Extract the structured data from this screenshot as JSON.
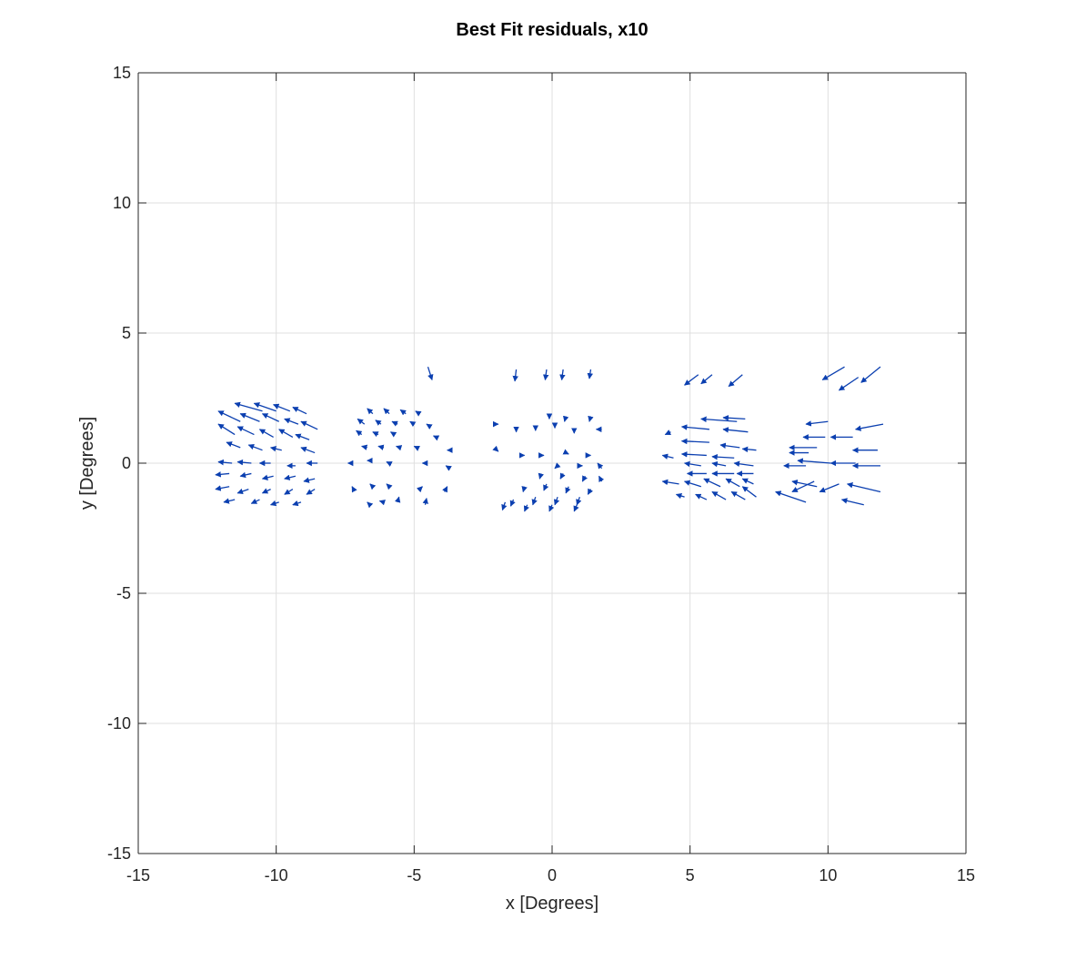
{
  "chart_data": {
    "type": "quiver",
    "title": "Best Fit residuals, x10",
    "xlabel": "x [Degrees]",
    "ylabel": "y [Degrees]",
    "xlim": [
      -15,
      15
    ],
    "ylim": [
      -15,
      15
    ],
    "xticks": [
      -15,
      -10,
      -5,
      0,
      5,
      10,
      15
    ],
    "yticks": [
      -15,
      -10,
      -5,
      0,
      5,
      10,
      15
    ],
    "xtick_labels": [
      "-15",
      "-10",
      "-5",
      "0",
      "5",
      "10",
      "15"
    ],
    "ytick_labels": [
      "-15",
      "-10",
      "-5",
      "0",
      "5",
      "10",
      "15"
    ],
    "grid": true,
    "box": true,
    "series_color": "#0b3fb0",
    "vectors": [
      {
        "x": -10.5,
        "y": 2.0,
        "u": -1.0,
        "v": 0.3
      },
      {
        "x": -10.0,
        "y": 2.0,
        "u": -0.8,
        "v": 0.3
      },
      {
        "x": -9.5,
        "y": 2.0,
        "u": -0.6,
        "v": 0.25
      },
      {
        "x": -8.9,
        "y": 1.9,
        "u": -0.5,
        "v": 0.25
      },
      {
        "x": -11.3,
        "y": 1.6,
        "u": -0.8,
        "v": 0.4
      },
      {
        "x": -10.6,
        "y": 1.6,
        "u": -0.7,
        "v": 0.3
      },
      {
        "x": -9.9,
        "y": 1.6,
        "u": -0.6,
        "v": 0.3
      },
      {
        "x": -9.2,
        "y": 1.5,
        "u": -0.5,
        "v": 0.2
      },
      {
        "x": -8.5,
        "y": 1.3,
        "u": -0.6,
        "v": 0.3
      },
      {
        "x": -11.5,
        "y": 1.1,
        "u": -0.6,
        "v": 0.4
      },
      {
        "x": -10.8,
        "y": 1.1,
        "u": -0.6,
        "v": 0.3
      },
      {
        "x": -10.1,
        "y": 1.0,
        "u": -0.5,
        "v": 0.3
      },
      {
        "x": -9.4,
        "y": 1.0,
        "u": -0.5,
        "v": 0.3
      },
      {
        "x": -8.8,
        "y": 0.9,
        "u": -0.5,
        "v": 0.2
      },
      {
        "x": -11.3,
        "y": 0.6,
        "u": -0.5,
        "v": 0.2
      },
      {
        "x": -10.5,
        "y": 0.5,
        "u": -0.5,
        "v": 0.2
      },
      {
        "x": -9.8,
        "y": 0.5,
        "u": -0.4,
        "v": 0.1
      },
      {
        "x": -8.6,
        "y": 0.4,
        "u": -0.5,
        "v": 0.2
      },
      {
        "x": -11.6,
        "y": 0.0,
        "u": -0.5,
        "v": 0.05
      },
      {
        "x": -10.9,
        "y": 0.0,
        "u": -0.5,
        "v": 0.05
      },
      {
        "x": -10.2,
        "y": 0.0,
        "u": -0.4,
        "v": 0.0
      },
      {
        "x": -9.3,
        "y": -0.1,
        "u": -0.3,
        "v": 0.0
      },
      {
        "x": -8.5,
        "y": 0.0,
        "u": -0.4,
        "v": 0.0
      },
      {
        "x": -11.7,
        "y": -0.4,
        "u": -0.5,
        "v": -0.05
      },
      {
        "x": -10.9,
        "y": -0.4,
        "u": -0.4,
        "v": -0.1
      },
      {
        "x": -10.1,
        "y": -0.5,
        "u": -0.4,
        "v": -0.1
      },
      {
        "x": -9.3,
        "y": -0.5,
        "u": -0.4,
        "v": -0.1
      },
      {
        "x": -8.6,
        "y": -0.6,
        "u": -0.4,
        "v": -0.1
      },
      {
        "x": -11.7,
        "y": -0.9,
        "u": -0.5,
        "v": -0.1
      },
      {
        "x": -11.0,
        "y": -1.0,
        "u": -0.4,
        "v": -0.15
      },
      {
        "x": -10.2,
        "y": -1.0,
        "u": -0.3,
        "v": -0.15
      },
      {
        "x": -9.4,
        "y": -1.0,
        "u": -0.3,
        "v": -0.2
      },
      {
        "x": -8.6,
        "y": -1.0,
        "u": -0.3,
        "v": -0.2
      },
      {
        "x": -11.5,
        "y": -1.4,
        "u": -0.4,
        "v": -0.1
      },
      {
        "x": -10.6,
        "y": -1.4,
        "u": -0.3,
        "v": -0.15
      },
      {
        "x": -9.9,
        "y": -1.5,
        "u": -0.3,
        "v": -0.1
      },
      {
        "x": -9.1,
        "y": -1.5,
        "u": -0.3,
        "v": -0.1
      },
      {
        "x": -6.5,
        "y": 1.9,
        "u": -0.2,
        "v": 0.2
      },
      {
        "x": -5.9,
        "y": 1.9,
        "u": -0.2,
        "v": 0.2
      },
      {
        "x": -5.3,
        "y": 1.9,
        "u": -0.2,
        "v": 0.15
      },
      {
        "x": -4.8,
        "y": 1.9,
        "u": -0.15,
        "v": 0.1
      },
      {
        "x": -6.8,
        "y": 1.5,
        "u": -0.25,
        "v": 0.2
      },
      {
        "x": -6.2,
        "y": 1.5,
        "u": -0.2,
        "v": 0.15
      },
      {
        "x": -5.6,
        "y": 1.5,
        "u": -0.2,
        "v": 0.1
      },
      {
        "x": -5.0,
        "y": 1.5,
        "u": -0.15,
        "v": 0.1
      },
      {
        "x": -4.4,
        "y": 1.4,
        "u": -0.15,
        "v": 0.1
      },
      {
        "x": -6.9,
        "y": 1.1,
        "u": -0.2,
        "v": 0.15
      },
      {
        "x": -6.3,
        "y": 1.1,
        "u": -0.2,
        "v": 0.1
      },
      {
        "x": -5.7,
        "y": 1.1,
        "u": -0.15,
        "v": 0.1
      },
      {
        "x": -4.2,
        "y": 1.0,
        "u": -0.1,
        "v": 0.05
      },
      {
        "x": -6.7,
        "y": 0.6,
        "u": -0.2,
        "v": 0.05
      },
      {
        "x": -6.1,
        "y": 0.6,
        "u": -0.2,
        "v": 0.05
      },
      {
        "x": -5.5,
        "y": 0.6,
        "u": -0.15,
        "v": 0.05
      },
      {
        "x": -4.9,
        "y": 0.6,
        "u": -0.1,
        "v": 0.05
      },
      {
        "x": -3.7,
        "y": 0.5,
        "u": -0.1,
        "v": 0.0
      },
      {
        "x": -7.3,
        "y": 0.0,
        "u": -0.1,
        "v": 0.0
      },
      {
        "x": -6.6,
        "y": 0.1,
        "u": -0.1,
        "v": 0.0
      },
      {
        "x": -5.9,
        "y": 0.0,
        "u": -0.1,
        "v": 0.05
      },
      {
        "x": -4.6,
        "y": 0.0,
        "u": -0.1,
        "v": 0.0
      },
      {
        "x": -3.7,
        "y": -0.2,
        "u": -0.15,
        "v": 0.1
      },
      {
        "x": -7.2,
        "y": -1.0,
        "u": -0.05,
        "v": 0.1
      },
      {
        "x": -6.5,
        "y": -0.9,
        "u": -0.1,
        "v": 0.1
      },
      {
        "x": -5.9,
        "y": -0.9,
        "u": -0.1,
        "v": 0.1
      },
      {
        "x": -4.8,
        "y": -1.0,
        "u": 0.1,
        "v": 0.1
      },
      {
        "x": -3.9,
        "y": -1.1,
        "u": 0.1,
        "v": 0.2
      },
      {
        "x": -6.6,
        "y": -1.6,
        "u": -0.1,
        "v": 0.1
      },
      {
        "x": -6.1,
        "y": -1.5,
        "u": -0.15,
        "v": 0.05
      },
      {
        "x": -5.6,
        "y": -1.5,
        "u": 0.05,
        "v": 0.2
      },
      {
        "x": -4.6,
        "y": -1.6,
        "u": 0.05,
        "v": 0.25
      },
      {
        "x": -4.5,
        "y": 3.7,
        "u": 0.15,
        "v": -0.5
      },
      {
        "x": -1.3,
        "y": 3.6,
        "u": -0.05,
        "v": -0.45
      },
      {
        "x": -0.2,
        "y": 3.6,
        "u": -0.05,
        "v": -0.4
      },
      {
        "x": 0.4,
        "y": 3.6,
        "u": -0.05,
        "v": -0.4
      },
      {
        "x": 1.4,
        "y": 3.6,
        "u": -0.05,
        "v": -0.35
      },
      {
        "x": -0.1,
        "y": 1.9,
        "u": 0.0,
        "v": -0.2
      },
      {
        "x": 0.5,
        "y": 1.8,
        "u": -0.05,
        "v": -0.2
      },
      {
        "x": 1.4,
        "y": 1.8,
        "u": -0.05,
        "v": -0.2
      },
      {
        "x": -0.6,
        "y": 1.4,
        "u": 0.0,
        "v": -0.15
      },
      {
        "x": 0.1,
        "y": 1.5,
        "u": 0.0,
        "v": -0.15
      },
      {
        "x": 0.8,
        "y": 1.3,
        "u": 0.0,
        "v": -0.15
      },
      {
        "x": 1.8,
        "y": 1.3,
        "u": -0.2,
        "v": 0.0
      },
      {
        "x": -2.0,
        "y": 1.5,
        "u": 0.05,
        "v": 0.0
      },
      {
        "x": -1.3,
        "y": 1.3,
        "u": 0.0,
        "v": -0.1
      },
      {
        "x": -2.0,
        "y": 0.5,
        "u": 0.05,
        "v": -0.05
      },
      {
        "x": -1.1,
        "y": 0.3,
        "u": 0.1,
        "v": 0.0
      },
      {
        "x": -0.4,
        "y": 0.3,
        "u": 0.1,
        "v": 0.0
      },
      {
        "x": 0.5,
        "y": 0.4,
        "u": 0.1,
        "v": -0.05
      },
      {
        "x": 1.3,
        "y": 0.3,
        "u": 0.1,
        "v": 0.0
      },
      {
        "x": 0.2,
        "y": -0.1,
        "u": -0.1,
        "v": -0.1
      },
      {
        "x": 1.0,
        "y": -0.1,
        "u": 0.1,
        "v": 0.0
      },
      {
        "x": 1.8,
        "y": -0.2,
        "u": -0.15,
        "v": 0.2
      },
      {
        "x": -0.4,
        "y": -0.4,
        "u": -0.05,
        "v": -0.2
      },
      {
        "x": 0.4,
        "y": -0.4,
        "u": -0.1,
        "v": -0.2
      },
      {
        "x": 1.2,
        "y": -0.5,
        "u": -0.1,
        "v": -0.2
      },
      {
        "x": 1.8,
        "y": -0.7,
        "u": -0.1,
        "v": 0.2
      },
      {
        "x": -1.0,
        "y": -0.9,
        "u": -0.05,
        "v": -0.2
      },
      {
        "x": -0.2,
        "y": -0.8,
        "u": -0.1,
        "v": -0.25
      },
      {
        "x": 0.6,
        "y": -0.9,
        "u": -0.1,
        "v": -0.25
      },
      {
        "x": 1.4,
        "y": -1.0,
        "u": -0.1,
        "v": -0.2
      },
      {
        "x": -1.4,
        "y": -1.4,
        "u": -0.1,
        "v": -0.25
      },
      {
        "x": -0.6,
        "y": -1.3,
        "u": -0.1,
        "v": -0.3
      },
      {
        "x": 0.2,
        "y": -1.3,
        "u": -0.1,
        "v": -0.3
      },
      {
        "x": 1.0,
        "y": -1.3,
        "u": -0.1,
        "v": -0.3
      },
      {
        "x": -1.7,
        "y": -1.5,
        "u": -0.1,
        "v": -0.3
      },
      {
        "x": -0.9,
        "y": -1.6,
        "u": -0.1,
        "v": -0.25
      },
      {
        "x": 0.0,
        "y": -1.6,
        "u": -0.1,
        "v": -0.25
      },
      {
        "x": 0.9,
        "y": -1.6,
        "u": -0.1,
        "v": -0.25
      },
      {
        "x": 5.3,
        "y": 3.4,
        "u": -0.5,
        "v": -0.4
      },
      {
        "x": 5.8,
        "y": 3.4,
        "u": -0.4,
        "v": -0.35
      },
      {
        "x": 6.9,
        "y": 3.4,
        "u": -0.5,
        "v": -0.45
      },
      {
        "x": 10.6,
        "y": 3.7,
        "u": -0.8,
        "v": -0.5
      },
      {
        "x": 11.1,
        "y": 3.3,
        "u": -0.7,
        "v": -0.5
      },
      {
        "x": 11.9,
        "y": 3.7,
        "u": -0.7,
        "v": -0.6
      },
      {
        "x": 6.7,
        "y": 1.6,
        "u": -1.3,
        "v": 0.1
      },
      {
        "x": 7.0,
        "y": 1.7,
        "u": -0.8,
        "v": 0.05
      },
      {
        "x": 5.7,
        "y": 1.3,
        "u": -1.0,
        "v": 0.1
      },
      {
        "x": 7.1,
        "y": 1.2,
        "u": -0.9,
        "v": 0.1
      },
      {
        "x": 4.3,
        "y": 1.2,
        "u": -0.2,
        "v": -0.1
      },
      {
        "x": 5.7,
        "y": 0.8,
        "u": -1.0,
        "v": 0.05
      },
      {
        "x": 6.8,
        "y": 0.6,
        "u": -0.7,
        "v": 0.1
      },
      {
        "x": 7.4,
        "y": 0.5,
        "u": -0.5,
        "v": 0.05
      },
      {
        "x": 5.6,
        "y": 0.3,
        "u": -0.9,
        "v": 0.05
      },
      {
        "x": 6.6,
        "y": 0.2,
        "u": -0.8,
        "v": 0.05
      },
      {
        "x": 4.4,
        "y": 0.2,
        "u": -0.4,
        "v": 0.1
      },
      {
        "x": 5.4,
        "y": -0.1,
        "u": -0.6,
        "v": 0.1
      },
      {
        "x": 6.3,
        "y": -0.1,
        "u": -0.5,
        "v": 0.1
      },
      {
        "x": 7.3,
        "y": -0.1,
        "u": -0.7,
        "v": 0.1
      },
      {
        "x": 5.6,
        "y": -0.4,
        "u": -0.7,
        "v": 0.0
      },
      {
        "x": 6.6,
        "y": -0.4,
        "u": -0.8,
        "v": 0.0
      },
      {
        "x": 7.3,
        "y": -0.4,
        "u": -0.6,
        "v": 0.0
      },
      {
        "x": 4.6,
        "y": -0.8,
        "u": -0.6,
        "v": 0.1
      },
      {
        "x": 5.4,
        "y": -0.9,
        "u": -0.6,
        "v": 0.2
      },
      {
        "x": 6.1,
        "y": -0.9,
        "u": -0.6,
        "v": 0.3
      },
      {
        "x": 6.8,
        "y": -0.9,
        "u": -0.5,
        "v": 0.3
      },
      {
        "x": 7.3,
        "y": -0.8,
        "u": -0.4,
        "v": 0.2
      },
      {
        "x": 4.8,
        "y": -1.3,
        "u": -0.3,
        "v": 0.1
      },
      {
        "x": 5.6,
        "y": -1.4,
        "u": -0.4,
        "v": 0.2
      },
      {
        "x": 6.3,
        "y": -1.4,
        "u": -0.5,
        "v": 0.3
      },
      {
        "x": 7.0,
        "y": -1.4,
        "u": -0.5,
        "v": 0.3
      },
      {
        "x": 7.4,
        "y": -1.3,
        "u": -0.5,
        "v": 0.4
      },
      {
        "x": 10.0,
        "y": 1.6,
        "u": -0.8,
        "v": -0.1
      },
      {
        "x": 12.0,
        "y": 1.5,
        "u": -1.0,
        "v": -0.2
      },
      {
        "x": 9.9,
        "y": 1.0,
        "u": -0.8,
        "v": 0.0
      },
      {
        "x": 10.9,
        "y": 1.0,
        "u": -0.8,
        "v": 0.0
      },
      {
        "x": 9.6,
        "y": 0.6,
        "u": -1.0,
        "v": 0.0
      },
      {
        "x": 11.8,
        "y": 0.5,
        "u": -0.9,
        "v": 0.0
      },
      {
        "x": 9.3,
        "y": 0.4,
        "u": -0.7,
        "v": 0.0
      },
      {
        "x": 10.1,
        "y": 0.0,
        "u": -1.2,
        "v": 0.1
      },
      {
        "x": 11.0,
        "y": 0.0,
        "u": -0.9,
        "v": 0.0
      },
      {
        "x": 11.9,
        "y": -0.1,
        "u": -1.0,
        "v": 0.0
      },
      {
        "x": 9.2,
        "y": -0.1,
        "u": -0.8,
        "v": 0.0
      },
      {
        "x": 9.5,
        "y": -0.7,
        "u": -0.8,
        "v": -0.4
      },
      {
        "x": 10.4,
        "y": -0.8,
        "u": -0.7,
        "v": -0.3
      },
      {
        "x": 11.9,
        "y": -1.1,
        "u": -1.2,
        "v": 0.3
      },
      {
        "x": 9.2,
        "y": -1.5,
        "u": -1.1,
        "v": 0.4
      },
      {
        "x": 11.3,
        "y": -1.6,
        "u": -0.8,
        "v": 0.2
      },
      {
        "x": 9.6,
        "y": -0.9,
        "u": -0.9,
        "v": 0.2
      }
    ]
  }
}
